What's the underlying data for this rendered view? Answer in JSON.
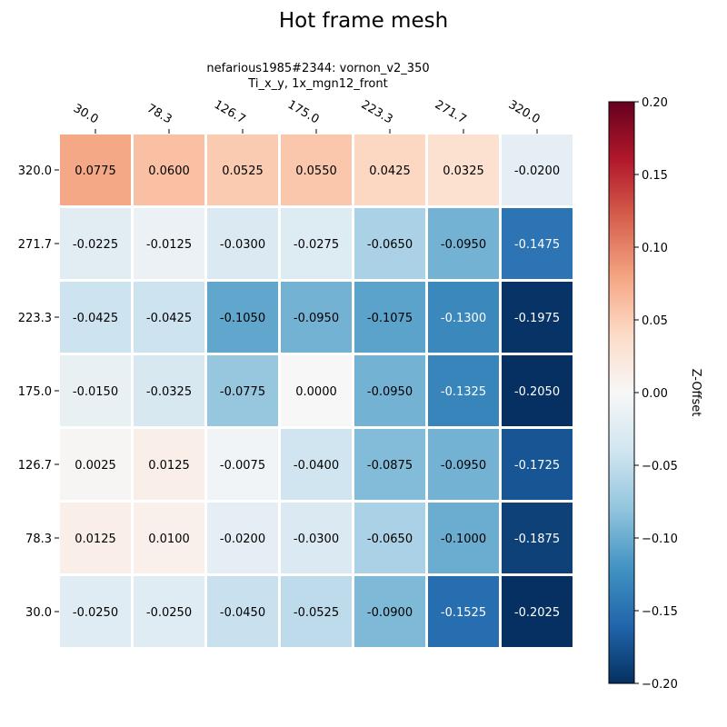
{
  "chart_data": {
    "type": "heatmap",
    "title": "Hot frame mesh",
    "subtitle_lines": [
      "nefarious1985#2344: vornon_v2_350",
      "Ti_x_y, 1x_mgn12_front"
    ],
    "x_ticks": [
      "30.0",
      "78.3",
      "126.7",
      "175.0",
      "223.3",
      "271.7",
      "320.0"
    ],
    "y_ticks": [
      "320.0",
      "271.7",
      "223.3",
      "175.0",
      "126.7",
      "78.3",
      "30.0"
    ],
    "values": [
      [
        0.0775,
        0.06,
        0.0525,
        0.055,
        0.0425,
        0.0325,
        -0.02
      ],
      [
        -0.0225,
        -0.0125,
        -0.03,
        -0.0275,
        -0.065,
        -0.095,
        -0.1475
      ],
      [
        -0.0425,
        -0.0425,
        -0.105,
        -0.095,
        -0.1075,
        -0.13,
        -0.1975
      ],
      [
        -0.015,
        -0.0325,
        -0.0775,
        0.0,
        -0.095,
        -0.1325,
        -0.205
      ],
      [
        0.0025,
        0.0125,
        -0.0075,
        -0.04,
        -0.0875,
        -0.095,
        -0.1725
      ],
      [
        0.0125,
        0.01,
        -0.02,
        -0.03,
        -0.065,
        -0.1,
        -0.1875
      ],
      [
        -0.025,
        -0.025,
        -0.045,
        -0.0525,
        -0.09,
        -0.1525,
        -0.2025
      ]
    ],
    "value_format_decimals": 4,
    "colormap": "RdBu_r",
    "vmin": -0.2,
    "vmax": 0.2,
    "colorbar_label": "Z-Offset",
    "colorbar_ticks": [
      "0.20",
      "0.15",
      "0.10",
      "0.05",
      "0.00",
      "−0.05",
      "−0.10",
      "−0.15",
      "−0.20"
    ],
    "colorbar_tick_values": [
      0.2,
      0.15,
      0.1,
      0.05,
      0.0,
      -0.05,
      -0.1,
      -0.15,
      -0.2
    ]
  }
}
